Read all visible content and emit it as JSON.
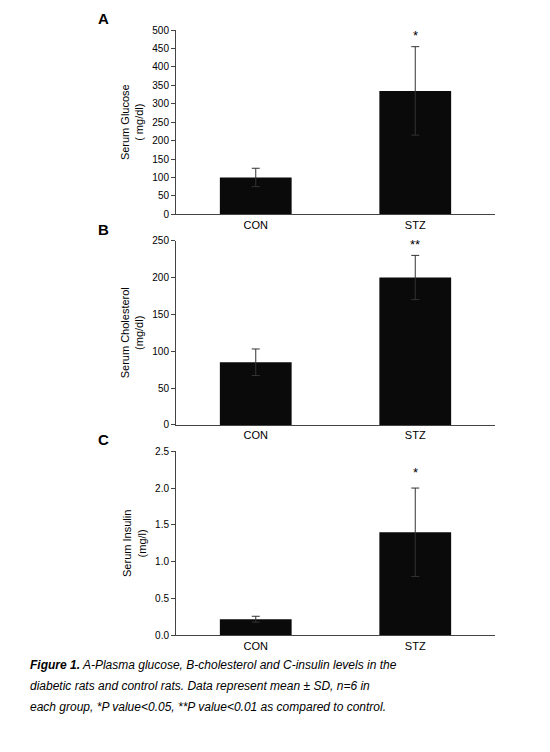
{
  "chart_data": [
    {
      "type": "bar",
      "title": "A",
      "categories": [
        "CON",
        "STZ"
      ],
      "values": [
        100,
        335
      ],
      "errors": [
        25,
        120
      ],
      "color": "#0a0a0a",
      "ylabel": "Serum Glucose\n( mg/dl)",
      "ylim": [
        0,
        500
      ],
      "yticks": [
        0,
        50,
        100,
        150,
        200,
        250,
        300,
        350,
        400,
        450,
        500
      ],
      "grid": false,
      "annotations": [
        {
          "x": "STZ",
          "y": 460,
          "text": "*"
        }
      ]
    },
    {
      "type": "bar",
      "title": "B",
      "categories": [
        "CON",
        "STZ"
      ],
      "values": [
        85,
        200
      ],
      "errors": [
        18,
        30
      ],
      "color": "#0a0a0a",
      "ylabel": "Serum Cholesterol\n(mg/dl)",
      "ylim": [
        0,
        250
      ],
      "yticks": [
        0,
        50,
        100,
        150,
        200,
        250
      ],
      "grid": false,
      "annotations": [
        {
          "x": "STZ",
          "y": 232,
          "text": "**"
        }
      ]
    },
    {
      "type": "bar",
      "title": "C",
      "categories": [
        "CON",
        "STZ"
      ],
      "values": [
        0.22,
        1.4
      ],
      "errors": [
        0.04,
        0.6
      ],
      "color": "#0a0a0a",
      "ylabel": "Serum Insulin\n(mg/l)",
      "ylim": [
        0,
        2.5
      ],
      "yticks": [
        {
          "value": 0,
          "label": "0.0"
        },
        0.5,
        {
          "value": 1,
          "label": "1.0"
        },
        1.5,
        {
          "value": 2,
          "label": "2.0"
        },
        2.5
      ],
      "grid": false,
      "annotations": [
        {
          "x": "STZ",
          "y": 2.08,
          "text": "*"
        }
      ]
    }
  ],
  "caption": {
    "bold": "Figure 1.",
    "lines": [
      " A-Plasma glucose, B-cholesterol and C-insulin levels in the",
      "diabetic rats and control rats. Data represent mean ± SD, n=6 in",
      "each group, *P value<0.05, **P value<0.01 as compared to control."
    ]
  }
}
